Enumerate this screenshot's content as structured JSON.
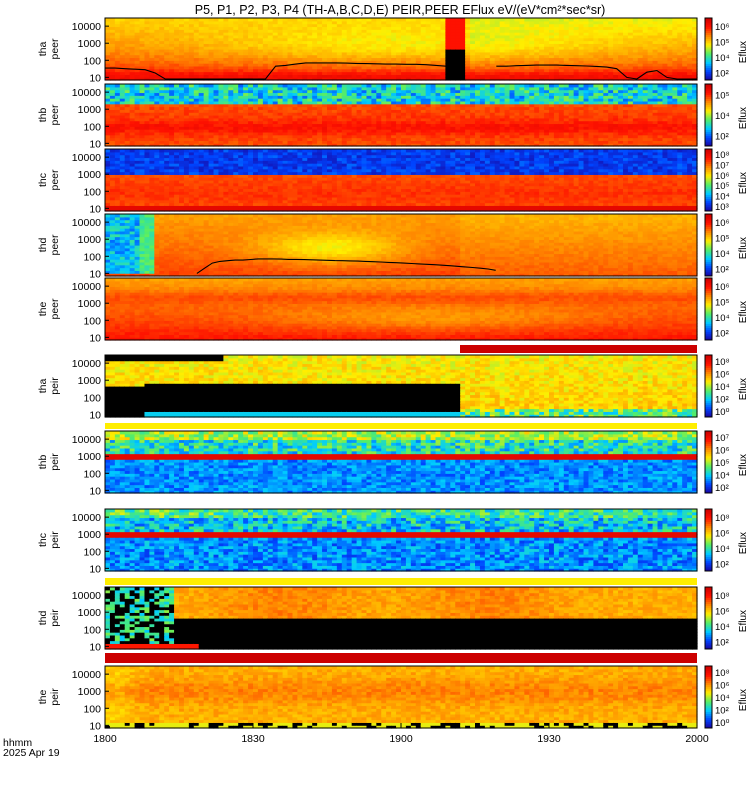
{
  "title": "P5, P1, P2, P3, P4 (TH-A,B,C,D,E) PEIR,PEER EFlux eV/(eV*cm²*sec*sr)",
  "footer": {
    "time_label": "hhmm",
    "date_label": "2025 Apr 19"
  },
  "colors": {
    "background": "#ffffff",
    "fill_gap": "#000000",
    "separator_white": "#ffffff",
    "separator_red": "#cc0000",
    "separator_yellow": "#ffee00",
    "colormap": [
      "#1a0099",
      "#0044ff",
      "#00ccff",
      "#55ee66",
      "#ffee00",
      "#ff8800",
      "#ff1100",
      "#cc0000"
    ]
  },
  "chart_data": {
    "type": "heatmap",
    "x_axis": {
      "range": [
        "1800",
        "2000"
      ],
      "ticks": [
        "1800",
        "1830",
        "1900",
        "1930",
        "2000"
      ],
      "tick_minutes": [
        0,
        30,
        60,
        90,
        120
      ]
    },
    "y_axis": {
      "scale": "log",
      "range_eV": [
        7,
        30000
      ],
      "ticks": [
        "10",
        "100",
        "1000",
        "10000"
      ]
    },
    "colorbar_title": "Eflux",
    "panels": [
      {
        "label_top": "tha",
        "label_bottom": "peer",
        "colorbar_ticks": [
          "10²",
          "10⁴",
          "10⁵",
          "10⁶"
        ],
        "colorbar_exp_range": [
          1.5,
          6
        ],
        "pattern": "peer_a",
        "trace_eV": [
          35,
          35,
          32,
          30,
          28,
          18,
          8,
          8,
          8,
          8,
          8,
          8,
          8,
          8,
          8,
          8,
          8,
          45,
          50,
          60,
          70,
          70,
          70,
          70,
          68,
          66,
          64,
          62,
          60,
          60,
          58,
          58,
          55,
          50,
          45,
          40,
          0,
          0,
          0,
          45,
          45,
          48,
          50,
          52,
          52,
          52,
          50,
          48,
          46,
          44,
          40,
          32,
          10,
          8,
          20,
          25,
          10,
          8,
          8,
          8
        ]
      },
      {
        "label_top": "thb",
        "label_bottom": "peer",
        "colorbar_ticks": [
          "10²",
          "10⁴",
          "10⁵"
        ],
        "colorbar_exp_range": [
          1.5,
          5.5
        ],
        "pattern": "peer_b"
      },
      {
        "label_top": "thc",
        "label_bottom": "peer",
        "colorbar_ticks": [
          "10³",
          "10⁴",
          "10⁵",
          "10⁶",
          "10⁷",
          "10⁸"
        ],
        "colorbar_exp_range": [
          3,
          8
        ],
        "pattern": "peer_c"
      },
      {
        "label_top": "thd",
        "label_bottom": "peer",
        "colorbar_ticks": [
          "10²",
          "10⁴",
          "10⁵",
          "10⁶"
        ],
        "colorbar_exp_range": [
          1.5,
          6
        ],
        "pattern": "peer_d",
        "trace_eV": [
          0,
          0,
          0,
          0,
          0,
          0,
          0,
          0,
          0,
          0,
          0,
          0,
          10,
          20,
          40,
          50,
          55,
          60,
          60,
          65,
          70,
          70,
          70,
          68,
          66,
          66,
          64,
          62,
          60,
          58,
          56,
          55,
          54,
          52,
          50,
          48,
          46,
          44,
          42,
          40,
          38,
          36,
          34,
          32,
          30,
          28,
          26,
          24,
          22,
          20,
          18,
          15
        ]
      },
      {
        "label_top": "the",
        "label_bottom": "peer",
        "colorbar_ticks": [
          "10²",
          "10⁴",
          "10⁵",
          "10⁶"
        ],
        "colorbar_exp_range": [
          1.5,
          6
        ],
        "pattern": "peer_e"
      },
      {
        "label_top": "tha",
        "label_bottom": "peir",
        "colorbar_ticks": [
          "10⁰",
          "10²",
          "10⁴",
          "10⁶",
          "10⁸"
        ],
        "colorbar_exp_range": [
          0,
          8
        ],
        "pattern": "peir_a"
      },
      {
        "label_top": "thb",
        "label_bottom": "peir",
        "colorbar_ticks": [
          "10²",
          "10⁴",
          "10⁵",
          "10⁶",
          "10⁷"
        ],
        "colorbar_exp_range": [
          1.5,
          7
        ],
        "pattern": "peir_b"
      },
      {
        "label_top": "thc",
        "label_bottom": "peir",
        "colorbar_ticks": [
          "10²",
          "10⁴",
          "10⁶",
          "10⁸"
        ],
        "colorbar_exp_range": [
          1.5,
          8
        ],
        "pattern": "peir_c"
      },
      {
        "label_top": "thd",
        "label_bottom": "peir",
        "colorbar_ticks": [
          "10²",
          "10⁴",
          "10⁶",
          "10⁸"
        ],
        "colorbar_exp_range": [
          1.5,
          8
        ],
        "pattern": "peir_d"
      },
      {
        "label_top": "the",
        "label_bottom": "peir",
        "colorbar_ticks": [
          "10⁰",
          "10²",
          "10⁴",
          "10⁶",
          "10⁸"
        ],
        "colorbar_exp_range": [
          0,
          8
        ],
        "pattern": "peir_e"
      }
    ],
    "grid": false,
    "legend": "colorbars-right"
  }
}
